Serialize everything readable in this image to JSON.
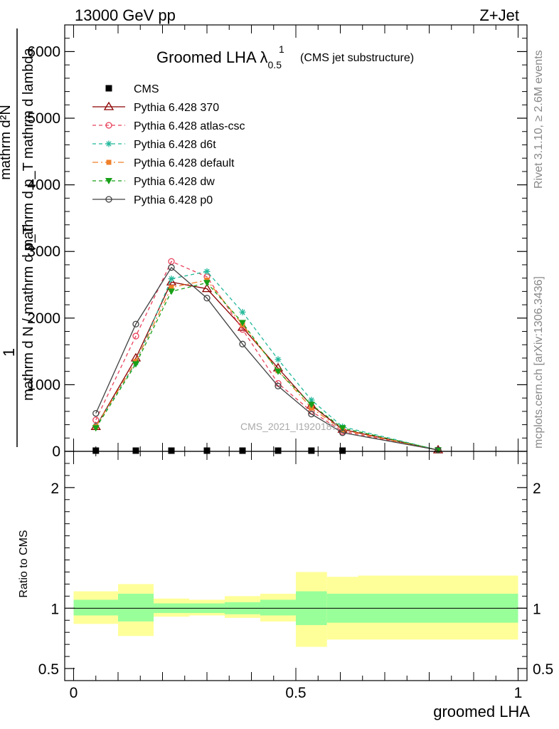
{
  "header": {
    "energy_label": "13000 GeV pp",
    "process_label": "Z+Jet"
  },
  "side_labels": {
    "rivet": "Rivet 3.1.10, ≥ 2.6M events",
    "mcplots": "mcplots.cern.ch [arXiv:1306.3436]"
  },
  "chart_data": [
    {
      "type": "line",
      "title": "Groomed LHA λ",
      "title_sup": "1",
      "title_sub": "0.5",
      "subtitle": "(CMS jet substructure)",
      "watermark": "CMS_2021_I1920187",
      "ylabel_parts": [
        "mathrm d",
        "N",
        "mathrm d p",
        "mathrm d lambda",
        "1",
        "mathrm d N / mathrm d p",
        "T",
        "mathrm d p",
        "T"
      ],
      "ylabel_top": "mathrm d²N",
      "ylabel_bottom_frac": "mathrm d p_T mathrm d lambda",
      "ylabel_prefix": "1",
      "ylabel_denominator": "mathrm d N / mathrm d p_T",
      "xlim": [
        -0.02,
        1.02
      ],
      "ylim": [
        0,
        6400
      ],
      "y_ticks": [
        0,
        1000,
        2000,
        3000,
        4000,
        5000,
        6000
      ],
      "y_tick_labels": [
        "0",
        "1000",
        "2000",
        "3000",
        "4000",
        "5000",
        "6000"
      ],
      "legend_position": "top-left",
      "series": [
        {
          "name": "CMS",
          "color": "#000000",
          "marker": "square",
          "dash": "none",
          "x": [
            0.05,
            0.14,
            0.22,
            0.3,
            0.38,
            0.46,
            0.535,
            0.605
          ],
          "y": [
            0,
            0,
            0,
            0,
            0,
            0,
            0,
            0
          ]
        },
        {
          "name": "Pythia 6.428 370",
          "color": "#8b0000",
          "marker": "triangle-open",
          "dash": "none",
          "x": [
            0.05,
            0.14,
            0.22,
            0.3,
            0.38,
            0.46,
            0.535,
            0.605,
            0.82
          ],
          "y": [
            370,
            1400,
            2540,
            2440,
            1860,
            1250,
            690,
            330,
            20
          ]
        },
        {
          "name": "Pythia 6.428 atlas-csc",
          "color": "#e8405a",
          "marker": "circle-open",
          "dash": "5,4",
          "x": [
            0.05,
            0.14,
            0.22,
            0.3,
            0.38,
            0.46,
            0.535,
            0.605,
            0.82
          ],
          "y": [
            470,
            1730,
            2850,
            2620,
            1830,
            1020,
            600,
            300,
            20
          ]
        },
        {
          "name": "Pythia 6.428 d6t",
          "color": "#22b89a",
          "marker": "star",
          "dash": "5,4",
          "x": [
            0.05,
            0.14,
            0.22,
            0.3,
            0.38,
            0.46,
            0.535,
            0.605,
            0.82
          ],
          "y": [
            380,
            1330,
            2590,
            2700,
            2090,
            1380,
            770,
            370,
            20
          ]
        },
        {
          "name": "Pythia 6.428 default",
          "color": "#f07f28",
          "marker": "square-filled",
          "dash": "8,4,2,4",
          "x": [
            0.05,
            0.14,
            0.22,
            0.3,
            0.38,
            0.46,
            0.535,
            0.605,
            0.82
          ],
          "y": [
            370,
            1350,
            2460,
            2570,
            1900,
            1210,
            650,
            320,
            20
          ]
        },
        {
          "name": "Pythia 6.428 dw",
          "color": "#18a018",
          "marker": "triangle-down-filled",
          "dash": "5,4",
          "x": [
            0.05,
            0.14,
            0.22,
            0.3,
            0.38,
            0.46,
            0.535,
            0.605,
            0.82
          ],
          "y": [
            350,
            1310,
            2400,
            2530,
            1930,
            1200,
            700,
            350,
            20
          ]
        },
        {
          "name": "Pythia 6.428 p0",
          "color": "#404040",
          "marker": "circle-open",
          "dash": "none",
          "x": [
            0.05,
            0.14,
            0.22,
            0.3,
            0.38,
            0.46,
            0.535,
            0.605,
            0.82
          ],
          "y": [
            570,
            1910,
            2760,
            2300,
            1610,
            980,
            560,
            280,
            20
          ]
        }
      ]
    },
    {
      "type": "area",
      "ylabel": "Ratio to CMS",
      "xlabel": "groomed LHA",
      "xlim": [
        -0.02,
        1.02
      ],
      "ylim": [
        0.4,
        2.3
      ],
      "x_ticks": [
        0,
        0.5,
        1
      ],
      "x_tick_labels": [
        "0",
        "0.5",
        "1"
      ],
      "y_ticks": [
        0.5,
        1,
        2
      ],
      "y_tick_labels": [
        "0.5",
        "1",
        "2"
      ],
      "reference_line": 1,
      "bands": [
        {
          "x0": 0.0,
          "x1": 0.1,
          "inner": [
            0.94,
            1.07
          ],
          "outer": [
            0.87,
            1.14
          ]
        },
        {
          "x0": 0.1,
          "x1": 0.18,
          "inner": [
            0.89,
            1.12
          ],
          "outer": [
            0.77,
            1.2
          ]
        },
        {
          "x0": 0.18,
          "x1": 0.26,
          "inner": [
            0.96,
            1.04
          ],
          "outer": [
            0.93,
            1.08
          ]
        },
        {
          "x0": 0.26,
          "x1": 0.34,
          "inner": [
            0.96,
            1.04
          ],
          "outer": [
            0.94,
            1.07
          ]
        },
        {
          "x0": 0.34,
          "x1": 0.42,
          "inner": [
            0.95,
            1.05
          ],
          "outer": [
            0.92,
            1.1
          ]
        },
        {
          "x0": 0.42,
          "x1": 0.5,
          "inner": [
            0.94,
            1.07
          ],
          "outer": [
            0.89,
            1.12
          ]
        },
        {
          "x0": 0.5,
          "x1": 0.57,
          "inner": [
            0.86,
            1.14
          ],
          "outer": [
            0.68,
            1.3
          ]
        },
        {
          "x0": 0.57,
          "x1": 0.64,
          "inner": [
            0.88,
            1.12
          ],
          "outer": [
            0.74,
            1.26
          ]
        },
        {
          "x0": 0.64,
          "x1": 1.0,
          "inner": [
            0.88,
            1.12
          ],
          "outer": [
            0.74,
            1.27
          ]
        }
      ],
      "colors": {
        "inner": "#99ff99",
        "outer": "#ffff99"
      }
    }
  ]
}
